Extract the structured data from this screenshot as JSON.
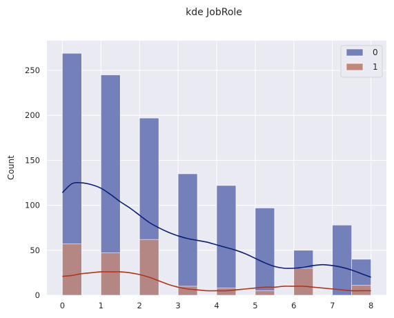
{
  "chart_data": {
    "type": "bar",
    "title": "kde JobRole",
    "xlabel": "",
    "ylabel": "Count",
    "xlim": [
      -0.4,
      8.4
    ],
    "ylim": [
      0,
      283
    ],
    "x_ticks": [
      0,
      1,
      2,
      3,
      4,
      5,
      6,
      7,
      8
    ],
    "y_ticks": [
      0,
      50,
      100,
      150,
      200,
      250
    ],
    "grid": true,
    "legend_position": "top-right",
    "bin_edges": [
      0,
      0.5,
      1.0,
      1.5,
      2.0,
      2.5,
      3.0,
      3.5,
      4.0,
      4.5,
      5.0,
      5.5,
      6.0,
      6.5,
      7.0,
      7.5,
      8.0
    ],
    "series": [
      {
        "name": "0",
        "color": "#7480b9",
        "line_color": "#0a1e78",
        "bins": [
          {
            "x": 0,
            "value": 269
          },
          {
            "x": 1,
            "value": 245
          },
          {
            "x": 2,
            "value": 197
          },
          {
            "x": 3,
            "value": 135
          },
          {
            "x": 4,
            "value": 122
          },
          {
            "x": 5,
            "value": 97
          },
          {
            "x": 6,
            "value": 50
          },
          {
            "x": 7,
            "value": 78
          },
          {
            "x": 7.75,
            "value": 40
          }
        ],
        "kde": [
          [
            0,
            114
          ],
          [
            0.25,
            124
          ],
          [
            0.5,
            125
          ],
          [
            0.75,
            123
          ],
          [
            1,
            119
          ],
          [
            1.25,
            112
          ],
          [
            1.5,
            104
          ],
          [
            1.75,
            97
          ],
          [
            2,
            89
          ],
          [
            2.25,
            81
          ],
          [
            2.5,
            75
          ],
          [
            2.75,
            70
          ],
          [
            3,
            66
          ],
          [
            3.25,
            63
          ],
          [
            3.5,
            61
          ],
          [
            3.75,
            59
          ],
          [
            4,
            56
          ],
          [
            4.25,
            53
          ],
          [
            4.5,
            50
          ],
          [
            4.75,
            46
          ],
          [
            5,
            41
          ],
          [
            5.25,
            36
          ],
          [
            5.5,
            32
          ],
          [
            5.75,
            30
          ],
          [
            6,
            30
          ],
          [
            6.25,
            31
          ],
          [
            6.5,
            33
          ],
          [
            6.75,
            34
          ],
          [
            7,
            33
          ],
          [
            7.25,
            31
          ],
          [
            7.5,
            28
          ],
          [
            7.75,
            24
          ],
          [
            8,
            20
          ]
        ]
      },
      {
        "name": "1",
        "color": "#c0887b",
        "line_color": "#b0341a",
        "bins": [
          {
            "x": 0,
            "value": 57
          },
          {
            "x": 1,
            "value": 47
          },
          {
            "x": 2,
            "value": 62
          },
          {
            "x": 3,
            "value": 10
          },
          {
            "x": 4,
            "value": 8
          },
          {
            "x": 5,
            "value": 5
          },
          {
            "x": 6,
            "value": 30
          },
          {
            "x": 7,
            "value": 0
          },
          {
            "x": 7.75,
            "value": 11
          }
        ],
        "kde": [
          [
            0,
            21
          ],
          [
            0.25,
            22
          ],
          [
            0.5,
            24
          ],
          [
            0.75,
            25
          ],
          [
            1,
            26
          ],
          [
            1.25,
            26
          ],
          [
            1.5,
            26
          ],
          [
            1.75,
            25
          ],
          [
            2,
            23
          ],
          [
            2.25,
            20
          ],
          [
            2.5,
            16
          ],
          [
            2.75,
            12
          ],
          [
            3,
            9
          ],
          [
            3.25,
            7
          ],
          [
            3.5,
            6
          ],
          [
            3.75,
            5
          ],
          [
            4,
            5
          ],
          [
            4.25,
            5
          ],
          [
            4.5,
            6
          ],
          [
            4.75,
            7
          ],
          [
            5,
            8
          ],
          [
            5.25,
            9
          ],
          [
            5.5,
            9
          ],
          [
            5.75,
            10
          ],
          [
            6,
            10
          ],
          [
            6.25,
            10
          ],
          [
            6.5,
            9
          ],
          [
            6.75,
            8
          ],
          [
            7,
            7
          ],
          [
            7.25,
            6
          ],
          [
            7.5,
            5
          ],
          [
            7.75,
            5
          ],
          [
            8,
            5
          ]
        ]
      }
    ]
  }
}
